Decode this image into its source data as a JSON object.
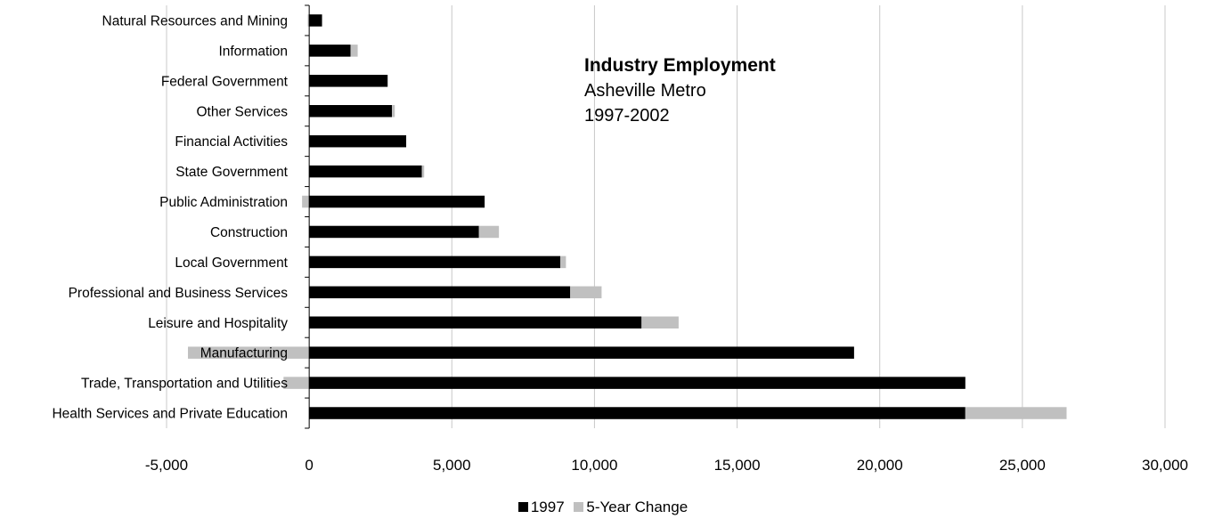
{
  "chart_data": {
    "type": "bar",
    "orientation": "horizontal",
    "stacked": true,
    "title": "Industry Employment",
    "subtitle_lines": [
      "Asheville Metro",
      "1997-2002"
    ],
    "categories": [
      "Natural Resources and Mining",
      "Information",
      "Federal Government",
      "Other Services",
      "Financial Activities",
      "State Government",
      "Public Administration",
      "Construction",
      "Local Government",
      "Professional and Business Services",
      "Leisure and Hospitality",
      "Manufacturing",
      "Trade, Transportation and Utilities",
      "Health Services and Private Education"
    ],
    "series": [
      {
        "name": "1997",
        "color": "#000000",
        "values": [
          450,
          1450,
          2750,
          2900,
          3400,
          3950,
          6150,
          5950,
          8800,
          9150,
          11650,
          19100,
          23000,
          23000
        ]
      },
      {
        "name": "5-Year Change",
        "color": "#c0c0c0",
        "values": [
          -50,
          250,
          0,
          100,
          0,
          80,
          -250,
          700,
          200,
          1100,
          1300,
          -4250,
          -900,
          3550
        ]
      }
    ],
    "xlim": [
      -5000,
      30000
    ],
    "xticks": [
      -5000,
      0,
      5000,
      10000,
      15000,
      20000,
      25000,
      30000
    ],
    "xtick_labels": [
      "-5,000",
      "0",
      "5,000",
      "10,000",
      "15,000",
      "20,000",
      "25,000",
      "30,000"
    ],
    "grid": "vertical",
    "legend_position": "bottom-center"
  }
}
